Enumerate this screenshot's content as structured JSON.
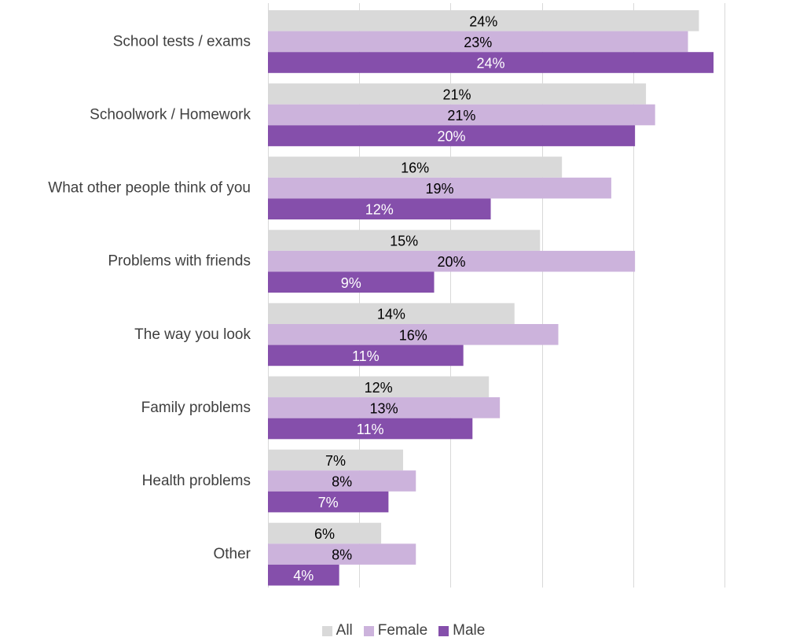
{
  "chart_data": {
    "type": "bar",
    "orientation": "horizontal",
    "categories": [
      "School tests / exams",
      "Schoolwork / Homework",
      "What other people think of you",
      "Problems with friends",
      "The way you look",
      "Family problems",
      "Health problems",
      "Other"
    ],
    "series": [
      {
        "name": "All",
        "color": "#d9d9d9",
        "label_color": "#000000",
        "values": [
          23.6,
          20.7,
          16.1,
          14.9,
          13.5,
          12.1,
          7.4,
          6.2
        ],
        "labels": [
          "24%",
          "21%",
          "16%",
          "15%",
          "14%",
          "12%",
          "7%",
          "6%"
        ]
      },
      {
        "name": "Female",
        "color": "#ccb3dc",
        "label_color": "#000000",
        "values": [
          23.0,
          21.2,
          18.8,
          20.1,
          15.9,
          12.7,
          8.1,
          8.1
        ],
        "labels": [
          "23%",
          "21%",
          "19%",
          "20%",
          "16%",
          "13%",
          "8%",
          "8%"
        ]
      },
      {
        "name": "Male",
        "color": "#854fab",
        "label_color": "#ffffff",
        "values": [
          24.4,
          20.1,
          12.2,
          9.1,
          10.7,
          11.2,
          6.6,
          3.9
        ],
        "labels": [
          "24%",
          "20%",
          "12%",
          "9%",
          "11%",
          "11%",
          "7%",
          "4%"
        ]
      }
    ],
    "xlim": [
      0,
      25
    ],
    "grid": true,
    "legend_position": "bottom"
  }
}
